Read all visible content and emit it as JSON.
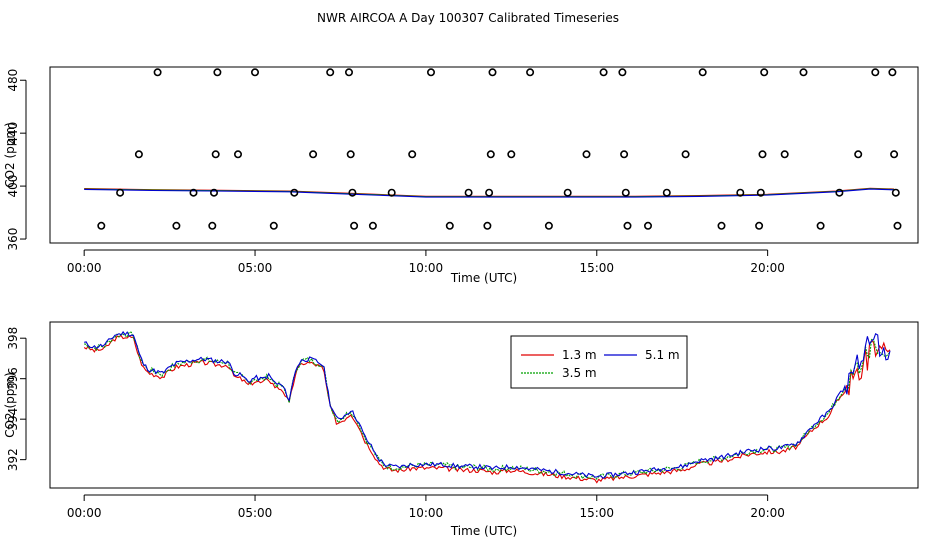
{
  "title": "NWR AIRCOA A  Day 100307  Calibrated Timeseries",
  "colors": {
    "s1": "#e00000",
    "s2": "#00a000",
    "s3": "#0000d0",
    "axis": "#000000"
  },
  "chart_data": [
    {
      "type": "scatter+line",
      "xlabel": "Time (UTC)",
      "ylabel": "CO2 (ppm)",
      "xlim": [
        -1.0,
        24.4
      ],
      "ylim": [
        357,
        490
      ],
      "xticks": [
        0,
        5,
        10,
        15,
        20
      ],
      "xtick_labels": [
        "00:00",
        "05:00",
        "10:00",
        "15:00",
        "20:00"
      ],
      "yticks": [
        360,
        400,
        440,
        480
      ],
      "ytick_labels": [
        "360",
        "400",
        "440",
        "480"
      ],
      "points": [
        [
          0.5,
          370
        ],
        [
          1.05,
          395
        ],
        [
          1.6,
          424
        ],
        [
          2.15,
          486
        ],
        [
          2.7,
          370
        ],
        [
          3.2,
          395
        ],
        [
          3.75,
          370
        ],
        [
          3.8,
          395
        ],
        [
          3.85,
          424
        ],
        [
          3.9,
          486
        ],
        [
          4.5,
          424
        ],
        [
          5.0,
          486
        ],
        [
          5.55,
          370
        ],
        [
          6.15,
          395
        ],
        [
          6.7,
          424
        ],
        [
          7.2,
          486
        ],
        [
          7.75,
          486
        ],
        [
          7.8,
          424
        ],
        [
          7.85,
          395
        ],
        [
          7.9,
          370
        ],
        [
          8.45,
          370
        ],
        [
          9.0,
          395
        ],
        [
          9.6,
          424
        ],
        [
          10.15,
          486
        ],
        [
          10.7,
          370
        ],
        [
          11.25,
          395
        ],
        [
          11.8,
          370
        ],
        [
          11.85,
          395
        ],
        [
          11.9,
          424
        ],
        [
          11.95,
          486
        ],
        [
          12.5,
          424
        ],
        [
          13.05,
          486
        ],
        [
          13.6,
          370
        ],
        [
          14.15,
          395
        ],
        [
          14.7,
          424
        ],
        [
          15.2,
          486
        ],
        [
          15.75,
          486
        ],
        [
          15.8,
          424
        ],
        [
          15.85,
          395
        ],
        [
          15.9,
          370
        ],
        [
          16.5,
          370
        ],
        [
          17.05,
          395
        ],
        [
          17.6,
          424
        ],
        [
          18.1,
          486
        ],
        [
          18.65,
          370
        ],
        [
          19.2,
          395
        ],
        [
          19.75,
          370
        ],
        [
          19.8,
          395
        ],
        [
          19.85,
          424
        ],
        [
          19.9,
          486
        ],
        [
          20.5,
          424
        ],
        [
          21.05,
          486
        ],
        [
          21.55,
          370
        ],
        [
          22.1,
          395
        ],
        [
          22.65,
          424
        ],
        [
          23.15,
          486
        ],
        [
          23.65,
          486
        ],
        [
          23.7,
          424
        ],
        [
          23.75,
          395
        ],
        [
          23.8,
          370
        ]
      ],
      "line_x": [
        0,
        2,
        4,
        6,
        8,
        10,
        12,
        14,
        16,
        18,
        20,
        22,
        23,
        23.7
      ],
      "line_y": [
        397.8,
        397,
        396.5,
        396,
        394,
        392,
        392,
        392,
        392,
        392.5,
        393.5,
        396,
        398,
        397.5
      ]
    },
    {
      "type": "line",
      "xlabel": "Time (UTC)",
      "ylabel": "CO2 (ppm)",
      "xlim": [
        -1.0,
        24.4
      ],
      "ylim": [
        390.6,
        398.8
      ],
      "xticks": [
        0,
        5,
        10,
        15,
        20
      ],
      "xtick_labels": [
        "00:00",
        "05:00",
        "10:00",
        "15:00",
        "20:00"
      ],
      "yticks": [
        392,
        394,
        396,
        398
      ],
      "ytick_labels": [
        "392",
        "394",
        "396",
        "398"
      ],
      "legend": {
        "position": "top-center",
        "entries": [
          "1.3 m",
          "3.5 m",
          "5.1 m"
        ]
      },
      "base_x": [
        0,
        0.3,
        0.6,
        0.9,
        1.2,
        1.45,
        1.6,
        1.75,
        1.9,
        2.1,
        2.3,
        2.5,
        2.7,
        3.0,
        3.3,
        3.6,
        3.9,
        4.2,
        4.4,
        4.6,
        4.8,
        5.0,
        5.2,
        5.4,
        5.6,
        5.8,
        6.0,
        6.2,
        6.4,
        6.6,
        6.8,
        7.0,
        7.2,
        7.4,
        7.6,
        7.8,
        8.0,
        8.2,
        8.4,
        8.6,
        8.8,
        9.0,
        9.3,
        9.6,
        10.0,
        10.5,
        11.0,
        11.5,
        12.0,
        12.5,
        13.0,
        13.5,
        14.0,
        14.5,
        15.0,
        15.5,
        16.0,
        16.5,
        17.0,
        17.5,
        18.0,
        18.5,
        19.0,
        19.5,
        20.0,
        20.3,
        20.6,
        20.9,
        21.2,
        21.5,
        21.8,
        22.0,
        22.2,
        22.4,
        22.6,
        22.8,
        23.0,
        23.2,
        23.4,
        23.6
      ],
      "base_y": [
        397.7,
        397.5,
        397.6,
        398.1,
        398.2,
        398.1,
        397.2,
        396.6,
        396.4,
        396.3,
        396.2,
        396.5,
        396.7,
        396.8,
        396.9,
        396.9,
        396.8,
        396.8,
        396.2,
        396.1,
        395.8,
        396.0,
        395.9,
        396.1,
        395.7,
        395.6,
        394.9,
        396.5,
        396.9,
        396.9,
        396.8,
        396.6,
        394.7,
        393.9,
        394.1,
        394.4,
        393.9,
        393.1,
        392.6,
        392.0,
        391.7,
        391.6,
        391.6,
        391.7,
        391.7,
        391.7,
        391.6,
        391.6,
        391.5,
        391.6,
        391.5,
        391.4,
        391.3,
        391.2,
        391.1,
        391.2,
        391.3,
        391.4,
        391.5,
        391.6,
        391.9,
        392.0,
        392.2,
        392.4,
        392.5,
        392.5,
        392.6,
        392.8,
        393.4,
        393.9,
        394.3,
        394.9,
        395.4,
        395.9,
        396.4,
        396.9,
        397.5,
        397.8,
        397.3,
        397.0
      ],
      "series": [
        {
          "name": "1.3 m",
          "offset": -0.12,
          "seed": 3,
          "amp": 0.12
        },
        {
          "name": "3.5 m",
          "offset": 0.02,
          "seed": 7,
          "amp": 0.15
        },
        {
          "name": "5.1 m",
          "offset": 0.06,
          "seed": 11,
          "amp": 0.12
        }
      ]
    }
  ]
}
